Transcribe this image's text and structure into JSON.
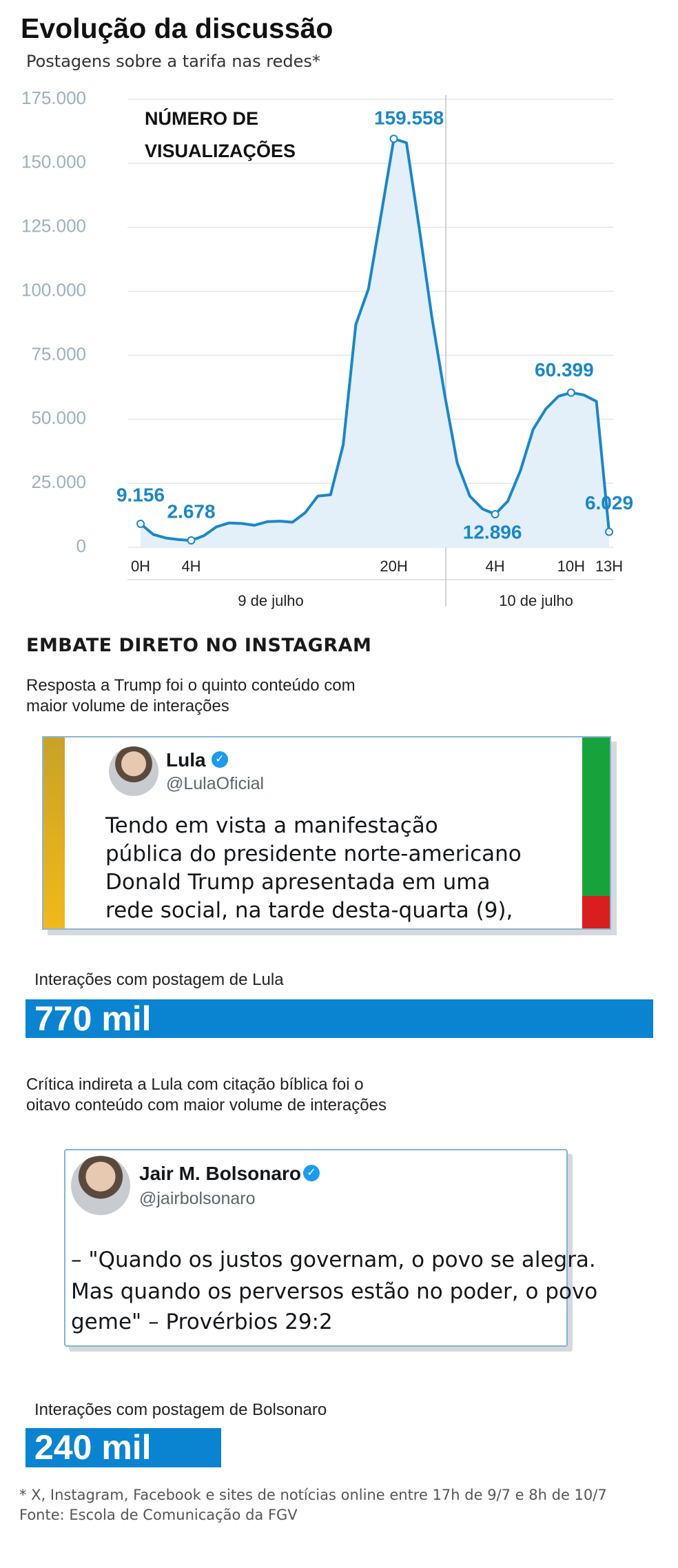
{
  "header": {
    "title": "Evolução da discussão",
    "subtitle": "Postagens sobre a tarifa nas redes*"
  },
  "chart_data": {
    "type": "line",
    "annotation": [
      "NÚMERO DE",
      "VISUALIZAÇÕES"
    ],
    "x": [
      0,
      1,
      2,
      3,
      4,
      5,
      6,
      7,
      8,
      9,
      10,
      11,
      12,
      13,
      14,
      15,
      16,
      17,
      18,
      19,
      20,
      21,
      22,
      23,
      24,
      25,
      26,
      27,
      28,
      29,
      30,
      31,
      32,
      33,
      34,
      35,
      36,
      37
    ],
    "values": [
      9156,
      5000,
      3600,
      3000,
      2678,
      4500,
      8000,
      9500,
      9300,
      8600,
      10000,
      10200,
      9800,
      13500,
      20000,
      20500,
      40000,
      87000,
      101000,
      130000,
      159558,
      158000,
      125000,
      90000,
      60000,
      33000,
      20000,
      15000,
      12896,
      18000,
      30000,
      46000,
      54000,
      59000,
      60399,
      59500,
      57000,
      6029
    ],
    "value_labels": [
      "9.156",
      null,
      null,
      null,
      "2.678",
      null,
      null,
      null,
      null,
      null,
      null,
      null,
      null,
      null,
      null,
      null,
      null,
      null,
      null,
      null,
      "159.558",
      null,
      null,
      null,
      null,
      null,
      null,
      null,
      "12.896",
      null,
      null,
      null,
      null,
      null,
      "60.399",
      null,
      null,
      "6.029"
    ],
    "color": "#1a87c8",
    "fill": "#e3eff9",
    "xlim": [
      0,
      37
    ],
    "xticks": [
      {
        "value": 0,
        "label": "0H"
      },
      {
        "value": 4,
        "label": "4H"
      },
      {
        "value": 20,
        "label": "20H"
      },
      {
        "value": 28,
        "label": "4H"
      },
      {
        "value": 34,
        "label": "10H"
      },
      {
        "value": 37,
        "label": "13H"
      }
    ],
    "ylim": [
      0,
      175000
    ],
    "yticks": [
      0,
      {
        "value": 25000,
        "label": "25.000"
      },
      {
        "value": 50000,
        "label": "50.000"
      },
      {
        "value": 75000,
        "label": "75.000"
      },
      {
        "value": 100000,
        "label": "100.000"
      },
      {
        "value": 125000,
        "label": "125.000"
      },
      {
        "value": 150000,
        "label": "150.000"
      },
      {
        "value": 175000,
        "label": "175.000"
      }
    ],
    "grid": true,
    "day_labels": [
      "9 de julho",
      "10 de julho"
    ]
  },
  "section": {
    "title": "EMBATE DIRETO NO INSTAGRAM",
    "lula_caption": [
      "Resposta a Trump foi o quinto conteúdo com",
      "maior volume de interações"
    ],
    "lula_post": {
      "name": "Lula",
      "handle": "@LulaOficial",
      "lines": [
        "Tendo em vista a manifestação",
        "pública do presidente norte-americano",
        "Donald Trump apresentada em uma",
        "rede social, na tarde desta-quarta (9),"
      ]
    },
    "bolsonaro_caption": [
      "Crítica indireta a Lula com citação bíblica foi o",
      "oitavo conteúdo com maior volume de interações"
    ],
    "bolsonaro_post": {
      "name": "Jair M. Bolsonaro",
      "handle": "@jairbolsonaro",
      "lines": [
        "– \"Quando os justos governam, o povo se alegra.",
        "Mas quando os perversos estão no poder, o povo",
        "geme\" – Provérbios 29:2"
      ]
    }
  },
  "interactions": {
    "labels": [
      "Interações com postagem de Lula",
      "Interações com postagem de Bolsonaro"
    ],
    "values": [
      770000,
      240000
    ],
    "value_labels": [
      "770 mil",
      "240 mil"
    ],
    "color": "#0a84d0"
  },
  "footer": [
    "* X, Instagram, Facebook e sites de notícias online entre 17h de 9/7 e 8h de 10/7",
    "Fonte: Escola de Comunicação da FGV"
  ]
}
